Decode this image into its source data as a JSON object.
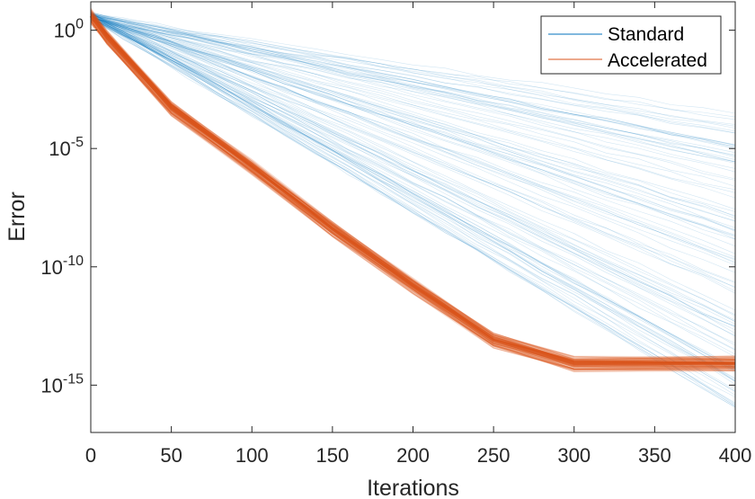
{
  "chart_data": {
    "type": "line",
    "xlabel": "Iterations",
    "ylabel": "Error",
    "xlim": [
      0,
      400
    ],
    "ylim_log10": [
      -17,
      1.2
    ],
    "yscale": "log",
    "grid": false,
    "legend_position": "top-right",
    "x_ticks": [
      "0",
      "50",
      "100",
      "150",
      "200",
      "250",
      "300",
      "350",
      "400"
    ],
    "x_tick_values": [
      0,
      50,
      100,
      150,
      200,
      250,
      300,
      350,
      400
    ],
    "y_ticks": [
      {
        "base": "10",
        "exp": "0",
        "value_log10": 0
      },
      {
        "base": "10",
        "exp": "-5",
        "value_log10": -5
      },
      {
        "base": "10",
        "exp": "-10",
        "value_log10": -10
      },
      {
        "base": "10",
        "exp": "-15",
        "value_log10": -15
      }
    ],
    "series": [
      {
        "name": "Standard",
        "color": "#0072BD",
        "style": "many faint runs fanning out",
        "x": [
          0,
          400
        ],
        "log10_error_start": 0.6,
        "log10_error_end_range": [
          -16.2,
          -3.5
        ]
      },
      {
        "name": "Accelerated",
        "color": "#D95319",
        "style": "dense band of runs",
        "x": [
          0,
          10,
          50,
          100,
          150,
          200,
          250,
          300,
          400
        ],
        "log10_error": [
          0.6,
          -0.3,
          -3.3,
          -5.8,
          -8.4,
          -10.8,
          -13.1,
          -14.1,
          -14.1
        ]
      }
    ]
  }
}
